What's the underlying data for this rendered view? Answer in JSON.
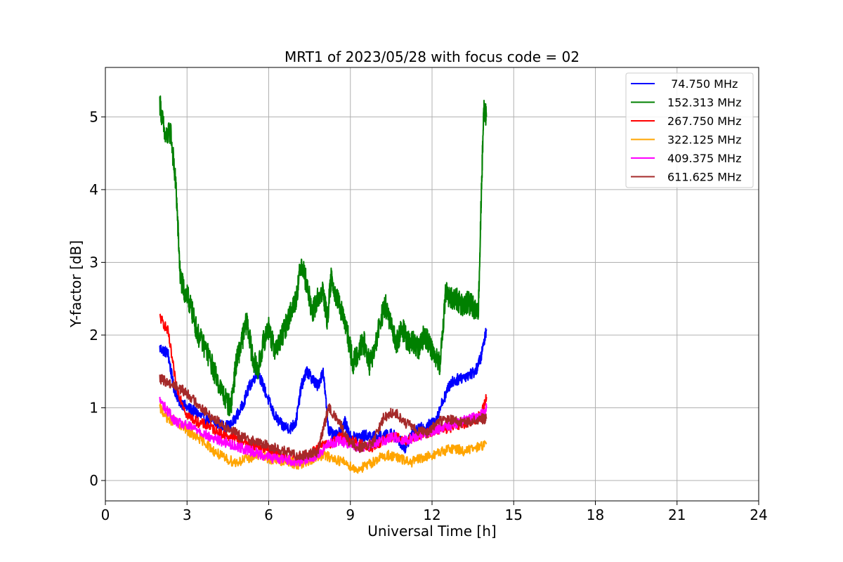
{
  "chart_data": {
    "type": "line",
    "title": "MRT1 of 2023/05/28 with focus code = 02",
    "xlabel": "Universal Time [h]",
    "ylabel": "Y-factor [dB]",
    "xlim": [
      0,
      24
    ],
    "ylim": [
      -0.28,
      5.68
    ],
    "xticks": [
      0,
      3,
      6,
      9,
      12,
      15,
      18,
      21,
      24
    ],
    "yticks": [
      0,
      1,
      2,
      3,
      4,
      5
    ],
    "grid": true,
    "legend_position": "top-right",
    "series": [
      {
        "name": " 74.750 MHz",
        "color": "#0000ff",
        "x": [
          2.0,
          2.3,
          2.5,
          2.7,
          3.0,
          3.3,
          3.6,
          4.0,
          4.3,
          4.6,
          5.0,
          5.3,
          5.6,
          5.9,
          6.2,
          6.5,
          6.8,
          7.0,
          7.2,
          7.4,
          7.6,
          7.8,
          8.0,
          8.2,
          8.4,
          8.6,
          8.8,
          9.0,
          9.3,
          9.6,
          9.9,
          10.2,
          10.5,
          10.8,
          11.0,
          11.2,
          11.5,
          11.8,
          12.1,
          12.4,
          12.7,
          13.0,
          13.3,
          13.6,
          13.8,
          14.0
        ],
        "y": [
          1.82,
          1.75,
          1.3,
          1.1,
          1.0,
          0.95,
          0.85,
          0.8,
          0.75,
          0.75,
          1.0,
          1.3,
          1.5,
          1.2,
          0.9,
          0.75,
          0.72,
          0.8,
          1.3,
          1.5,
          1.4,
          1.3,
          1.5,
          0.7,
          0.6,
          0.65,
          0.8,
          0.6,
          0.6,
          0.62,
          0.6,
          0.6,
          0.65,
          0.55,
          0.45,
          0.6,
          0.7,
          0.75,
          0.8,
          1.1,
          1.35,
          1.4,
          1.45,
          1.5,
          1.7,
          2.08
        ]
      },
      {
        "name": "152.313 MHz",
        "color": "#008000",
        "x": [
          2.0,
          2.2,
          2.4,
          2.6,
          2.75,
          2.9,
          3.05,
          3.2,
          3.4,
          3.7,
          4.0,
          4.3,
          4.6,
          4.8,
          5.0,
          5.2,
          5.4,
          5.6,
          5.8,
          6.0,
          6.2,
          6.4,
          6.6,
          6.8,
          7.0,
          7.2,
          7.4,
          7.6,
          7.8,
          8.0,
          8.15,
          8.3,
          8.5,
          8.7,
          8.9,
          9.1,
          9.3,
          9.5,
          9.7,
          9.9,
          10.1,
          10.3,
          10.5,
          10.7,
          10.9,
          11.1,
          11.3,
          11.5,
          11.7,
          11.9,
          12.1,
          12.3,
          12.5,
          12.7,
          12.9,
          13.1,
          13.3,
          13.5,
          13.7,
          13.8,
          13.9,
          14.0
        ],
        "y": [
          5.2,
          4.7,
          4.8,
          4.0,
          2.8,
          2.6,
          2.5,
          2.3,
          2.0,
          1.8,
          1.5,
          1.2,
          1.0,
          1.6,
          1.9,
          2.2,
          1.7,
          1.5,
          1.9,
          2.1,
          1.8,
          1.9,
          2.1,
          2.3,
          2.5,
          3.0,
          2.7,
          2.3,
          2.5,
          2.6,
          2.2,
          2.8,
          2.5,
          2.3,
          2.0,
          1.6,
          1.8,
          1.9,
          1.6,
          1.8,
          2.2,
          2.4,
          2.1,
          1.9,
          2.1,
          1.9,
          1.9,
          1.8,
          2.0,
          1.9,
          1.7,
          1.6,
          2.6,
          2.5,
          2.5,
          2.4,
          2.45,
          2.4,
          2.3,
          3.8,
          5.1,
          5.0
        ]
      },
      {
        "name": "267.750 MHz",
        "color": "#ff0000",
        "x": [
          2.0,
          2.3,
          2.6,
          3.0,
          3.4,
          3.8,
          4.2,
          4.6,
          5.0,
          5.4,
          5.8,
          6.2,
          6.6,
          7.0,
          7.4,
          7.8,
          8.2,
          8.6,
          9.0,
          9.4,
          9.8,
          10.2,
          10.6,
          11.0,
          11.4,
          11.8,
          12.2,
          12.6,
          13.0,
          13.4,
          13.8,
          14.0
        ],
        "y": [
          2.25,
          2.05,
          1.3,
          0.9,
          0.8,
          0.75,
          0.65,
          0.6,
          0.55,
          0.5,
          0.45,
          0.4,
          0.3,
          0.3,
          0.35,
          0.45,
          0.5,
          0.6,
          0.55,
          0.5,
          0.45,
          0.55,
          0.6,
          0.55,
          0.6,
          0.65,
          0.7,
          0.72,
          0.75,
          0.8,
          0.9,
          1.15
        ]
      },
      {
        "name": "322.125 MHz",
        "color": "#ffa500",
        "x": [
          2.0,
          2.3,
          2.6,
          3.0,
          3.3,
          3.6,
          4.0,
          4.4,
          4.8,
          5.2,
          5.6,
          6.0,
          6.4,
          6.8,
          7.2,
          7.6,
          8.0,
          8.4,
          8.8,
          9.2,
          9.6,
          10.0,
          10.4,
          10.8,
          11.2,
          11.6,
          12.0,
          12.4,
          12.8,
          13.2,
          13.6,
          14.0
        ],
        "y": [
          1.0,
          0.85,
          0.8,
          0.7,
          0.6,
          0.55,
          0.4,
          0.3,
          0.25,
          0.3,
          0.35,
          0.3,
          0.28,
          0.25,
          0.2,
          0.3,
          0.35,
          0.3,
          0.25,
          0.15,
          0.2,
          0.3,
          0.35,
          0.3,
          0.25,
          0.3,
          0.35,
          0.4,
          0.45,
          0.4,
          0.45,
          0.5
        ]
      },
      {
        "name": "409.375 MHz",
        "color": "#ff00ff",
        "x": [
          2.0,
          2.3,
          2.6,
          3.0,
          3.4,
          3.8,
          4.2,
          4.6,
          5.0,
          5.4,
          5.8,
          6.2,
          6.6,
          7.0,
          7.4,
          7.8,
          8.2,
          8.6,
          9.0,
          9.4,
          9.8,
          10.2,
          10.6,
          11.0,
          11.4,
          11.8,
          12.2,
          12.6,
          13.0,
          13.4,
          13.8,
          14.0
        ],
        "y": [
          1.1,
          0.95,
          0.8,
          0.75,
          0.7,
          0.6,
          0.55,
          0.5,
          0.45,
          0.4,
          0.35,
          0.3,
          0.3,
          0.25,
          0.3,
          0.35,
          0.5,
          0.55,
          0.5,
          0.45,
          0.5,
          0.55,
          0.6,
          0.55,
          0.6,
          0.65,
          0.7,
          0.75,
          0.8,
          0.85,
          0.9,
          1.0
        ]
      },
      {
        "name": "611.625 MHz",
        "color": "#a52a2a",
        "x": [
          2.0,
          2.3,
          2.6,
          3.0,
          3.4,
          3.8,
          4.2,
          4.6,
          5.0,
          5.4,
          5.8,
          6.2,
          6.6,
          7.0,
          7.4,
          7.8,
          8.0,
          8.2,
          8.6,
          9.0,
          9.4,
          9.8,
          10.2,
          10.6,
          11.0,
          11.4,
          11.8,
          12.2,
          12.6,
          13.0,
          13.4,
          13.8,
          14.0
        ],
        "y": [
          1.4,
          1.35,
          1.3,
          1.2,
          1.05,
          0.9,
          0.8,
          0.7,
          0.6,
          0.55,
          0.5,
          0.45,
          0.4,
          0.35,
          0.35,
          0.4,
          0.7,
          1.0,
          0.8,
          0.5,
          0.45,
          0.5,
          0.85,
          0.95,
          0.8,
          0.7,
          0.65,
          0.8,
          0.85,
          0.8,
          0.8,
          0.85,
          0.85
        ]
      }
    ]
  }
}
